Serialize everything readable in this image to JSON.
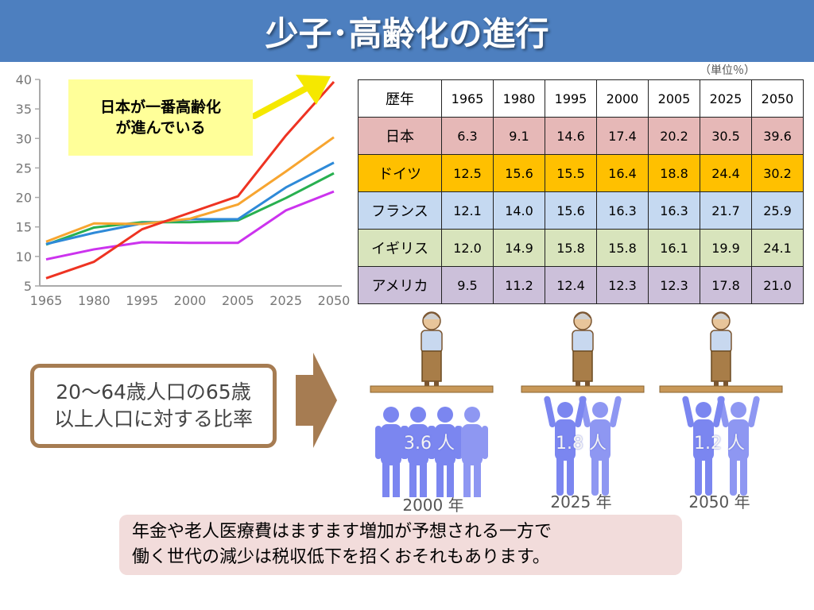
{
  "title": "少子･高齢化の進行",
  "callout": {
    "line1": "日本が一番高齢化",
    "line2": "が進んでいる"
  },
  "unit_label": "（単位％）",
  "colors": {
    "日本": "#ee3322",
    "ドイツ": "#f7a530",
    "フランス": "#2e8ad8",
    "イギリス": "#28b050",
    "アメリカ": "#cc33ee",
    "title_bg": "#4d7fbf",
    "people": "#7b86f0",
    "arrow": "#f5e800"
  },
  "table": {
    "corner": "歴年",
    "years": [
      "1965",
      "1980",
      "1995",
      "2000",
      "2005",
      "2025",
      "2050"
    ],
    "rows": [
      {
        "country": "日本",
        "bg": "#e6b8b7",
        "values": [
          "6.3",
          "9.1",
          "14.6",
          "17.4",
          "20.2",
          "30.5",
          "39.6"
        ]
      },
      {
        "country": "ドイツ",
        "bg": "#ffc000",
        "values": [
          "12.5",
          "15.6",
          "15.5",
          "16.4",
          "18.8",
          "24.4",
          "30.2"
        ]
      },
      {
        "country": "フランス",
        "bg": "#c5d9f1",
        "values": [
          "12.1",
          "14.0",
          "15.6",
          "16.3",
          "16.3",
          "21.7",
          "25.9"
        ]
      },
      {
        "country": "イギリス",
        "bg": "#d8e4bc",
        "values": [
          "12.0",
          "14.9",
          "15.8",
          "15.8",
          "16.1",
          "19.9",
          "24.1"
        ]
      },
      {
        "country": "アメリカ",
        "bg": "#ccc0da",
        "values": [
          "9.5",
          "11.2",
          "12.4",
          "12.3",
          "12.3",
          "17.8",
          "21.0"
        ]
      }
    ]
  },
  "chart_data": {
    "type": "line",
    "x": [
      "1965",
      "1980",
      "1995",
      "2000",
      "2005",
      "2025",
      "2050"
    ],
    "ylim": [
      5,
      40
    ],
    "yticks": [
      5,
      10,
      15,
      20,
      25,
      30,
      35,
      40
    ],
    "grid": false,
    "series": [
      {
        "name": "日本",
        "values": [
          6.3,
          9.1,
          14.6,
          17.4,
          20.2,
          30.5,
          39.6
        ]
      },
      {
        "name": "ドイツ",
        "values": [
          12.5,
          15.6,
          15.5,
          16.4,
          18.8,
          24.4,
          30.2
        ]
      },
      {
        "name": "フランス",
        "values": [
          12.1,
          14.0,
          15.6,
          16.3,
          16.3,
          21.7,
          25.9
        ]
      },
      {
        "name": "イギリス",
        "values": [
          12.0,
          14.9,
          15.8,
          15.8,
          16.1,
          19.9,
          24.1
        ]
      },
      {
        "name": "アメリカ",
        "values": [
          9.5,
          11.2,
          12.4,
          12.3,
          12.3,
          17.8,
          21.0
        ]
      }
    ]
  },
  "ratio_box": {
    "line1": "20～64歳人口の65歳",
    "line2": "以上人口に対する比率"
  },
  "scenes": [
    {
      "year": "2000 年",
      "ratio": "3.6 人",
      "supporters": 3.6
    },
    {
      "year": "2025 年",
      "ratio": "1.8 人",
      "supporters": 1.8
    },
    {
      "year": "2050 年",
      "ratio": "1.2 人",
      "supporters": 1.2
    }
  ],
  "note": {
    "line1": "年金や老人医療費はますます増加が予想される一方で",
    "line2": "働く世代の減少は税収低下を招くおそれもあります。"
  }
}
